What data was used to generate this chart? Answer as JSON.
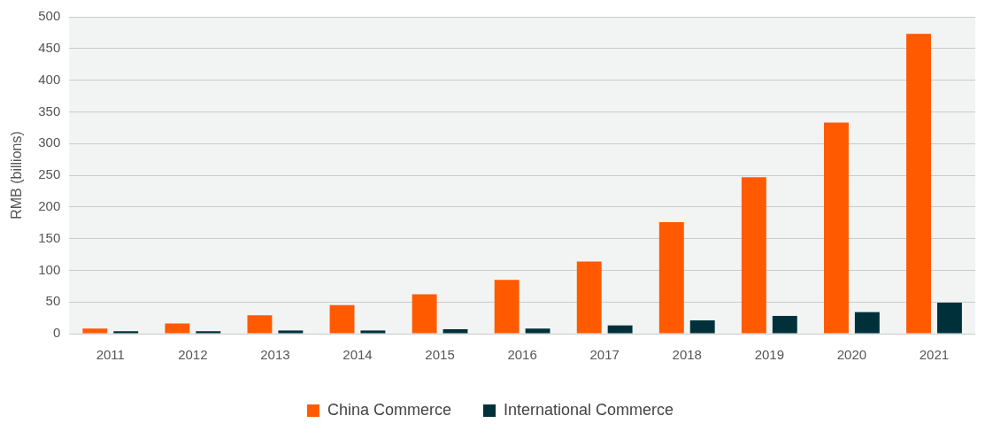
{
  "chart_data": {
    "type": "bar",
    "ylabel": "RMB (billions)",
    "categories": [
      "2011",
      "2012",
      "2013",
      "2014",
      "2015",
      "2016",
      "2017",
      "2018",
      "2019",
      "2020",
      "2021"
    ],
    "series": [
      {
        "name": "China Commerce",
        "color": "#ff5a00",
        "values": [
          8,
          16,
          29,
          45,
          62,
          85,
          114,
          176,
          247,
          333,
          473
        ]
      },
      {
        "name": "International Commerce",
        "color": "#00313b",
        "values": [
          4,
          4,
          5,
          5,
          7,
          8,
          13,
          21,
          28,
          34,
          49
        ]
      }
    ],
    "ylim": [
      0,
      500
    ],
    "yticks": [
      0,
      50,
      100,
      150,
      200,
      250,
      300,
      350,
      400,
      450,
      500
    ],
    "grid": "y",
    "legend": "bottom"
  }
}
